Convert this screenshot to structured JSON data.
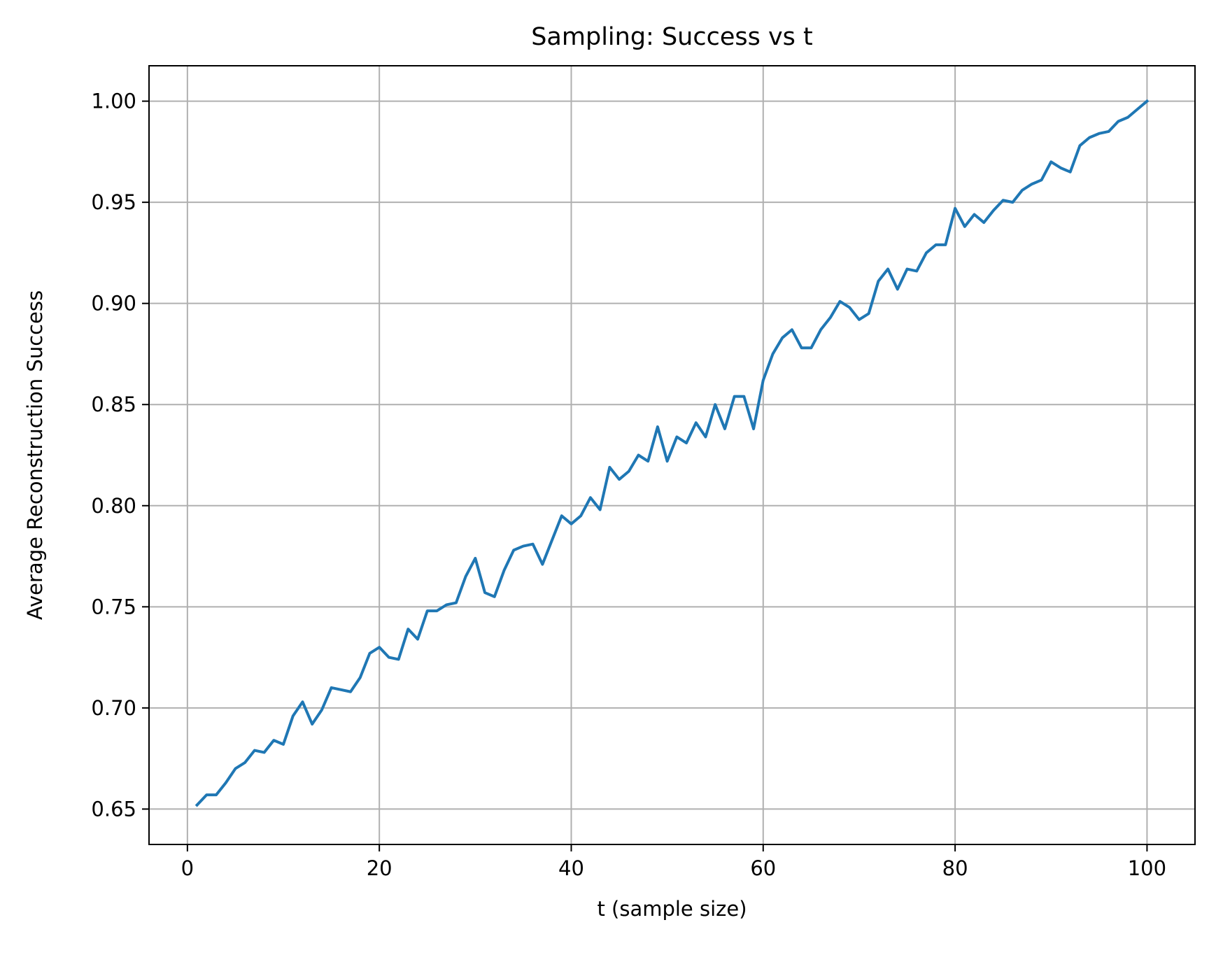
{
  "chart_data": {
    "type": "line",
    "title": "Sampling: Success vs t",
    "xlabel": "t (sample size)",
    "ylabel": "Average Reconstruction Success",
    "xlim": [
      -4,
      105
    ],
    "ylim": [
      0.6325,
      1.0175
    ],
    "xticks": [
      0,
      20,
      40,
      60,
      80,
      100
    ],
    "xtick_labels": [
      "0",
      "20",
      "40",
      "60",
      "80",
      "100"
    ],
    "yticks": [
      0.65,
      0.7,
      0.75,
      0.8,
      0.85,
      0.9,
      0.95,
      1.0
    ],
    "ytick_labels": [
      "0.65",
      "0.70",
      "0.75",
      "0.80",
      "0.85",
      "0.90",
      "0.95",
      "1.00"
    ],
    "grid": true,
    "line_color": "#1f77b4",
    "grid_color": "#b0b0b0",
    "series": [
      {
        "x": [
          1,
          2,
          3,
          4,
          5,
          6,
          7,
          8,
          9,
          10,
          11,
          12,
          13,
          14,
          15,
          16,
          17,
          18,
          19,
          20,
          21,
          22,
          23,
          24,
          25,
          26,
          27,
          28,
          29,
          30,
          31,
          32,
          33,
          34,
          35,
          36,
          37,
          38,
          39,
          40,
          41,
          42,
          43,
          44,
          45,
          46,
          47,
          48,
          49,
          50,
          51,
          52,
          53,
          54,
          55,
          56,
          57,
          58,
          59,
          60,
          61,
          62,
          63,
          64,
          65,
          66,
          67,
          68,
          69,
          70,
          71,
          72,
          73,
          74,
          75,
          76,
          77,
          78,
          79,
          80,
          81,
          82,
          83,
          84,
          85,
          86,
          87,
          88,
          89,
          90,
          91,
          92,
          93,
          94,
          95,
          96,
          97,
          98,
          99,
          100
        ],
        "values": [
          0.652,
          0.657,
          0.657,
          0.663,
          0.67,
          0.673,
          0.679,
          0.678,
          0.684,
          0.682,
          0.696,
          0.703,
          0.692,
          0.699,
          0.71,
          0.709,
          0.708,
          0.715,
          0.727,
          0.73,
          0.725,
          0.724,
          0.739,
          0.734,
          0.748,
          0.748,
          0.751,
          0.752,
          0.765,
          0.774,
          0.757,
          0.755,
          0.768,
          0.778,
          0.78,
          0.781,
          0.771,
          0.783,
          0.795,
          0.791,
          0.795,
          0.804,
          0.798,
          0.819,
          0.813,
          0.817,
          0.825,
          0.822,
          0.839,
          0.822,
          0.834,
          0.831,
          0.841,
          0.834,
          0.85,
          0.838,
          0.854,
          0.854,
          0.838,
          0.862,
          0.875,
          0.883,
          0.887,
          0.878,
          0.878,
          0.887,
          0.893,
          0.901,
          0.898,
          0.892,
          0.895,
          0.911,
          0.917,
          0.907,
          0.917,
          0.916,
          0.925,
          0.929,
          0.929,
          0.947,
          0.938,
          0.944,
          0.94,
          0.946,
          0.951,
          0.95,
          0.956,
          0.959,
          0.961,
          0.97,
          0.967,
          0.965,
          0.978,
          0.982,
          0.984,
          0.985,
          0.99,
          0.992,
          0.996,
          1.0
        ]
      }
    ]
  }
}
